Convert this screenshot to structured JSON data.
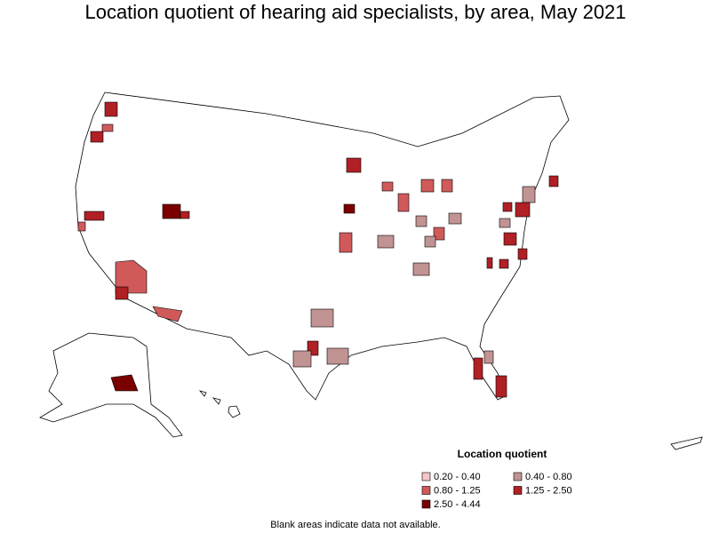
{
  "title": "Location quotient of hearing aid specialists, by area, May 2021",
  "legend": {
    "title": "Location quotient",
    "items": [
      {
        "label": "0.20 - 0.40",
        "color": "#f5c6c6"
      },
      {
        "label": "0.40 - 0.80",
        "color": "#c29393"
      },
      {
        "label": "0.80 - 1.25",
        "color": "#d05a5a"
      },
      {
        "label": "1.25 - 2.50",
        "color": "#b02025"
      },
      {
        "label": "2.50 - 4.44",
        "color": "#7a0000"
      }
    ]
  },
  "note": "Blank areas indicate data not available."
}
